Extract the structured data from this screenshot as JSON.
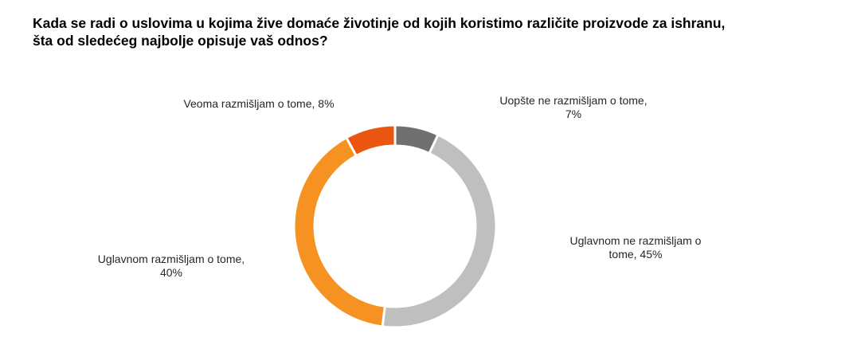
{
  "title_lines": [
    "Kada se radi o uslovima u kojima žive domaće životinje od kojih koristimo različite proizvode za ishranu,",
    "šta od sledećeg najbolje opisuje vaš odnos?"
  ],
  "chart_data": {
    "type": "pie",
    "variant": "donut",
    "title": "Kada se radi o uslovima u kojima žive domaće životinje od kojih koristimo različite proizvode za ishranu, šta od sledećeg najbolje opisuje vaš odnos?",
    "slices": [
      {
        "name": "Uopšte ne razmišljam o tome",
        "value": 7,
        "color": "#707070",
        "label_lines": [
          "Uopšte ne razmišljam o tome,",
          "7%"
        ]
      },
      {
        "name": "Uglavnom ne razmišljam o tome",
        "value": 45,
        "color": "#bfbfbf",
        "label_lines": [
          "Uglavnom ne razmišljam o",
          "tome, 45%"
        ]
      },
      {
        "name": "Uglavnom razmišljam o tome",
        "value": 40,
        "color": "#f59222",
        "label_lines": [
          "Uglavnom razmišljam o tome,",
          "40%"
        ]
      },
      {
        "name": "Veoma razmišljam o tome",
        "value": 8,
        "color": "#ea560f",
        "label_lines": [
          "Veoma razmišljam o tome, 8%"
        ]
      }
    ],
    "legend": "none"
  }
}
